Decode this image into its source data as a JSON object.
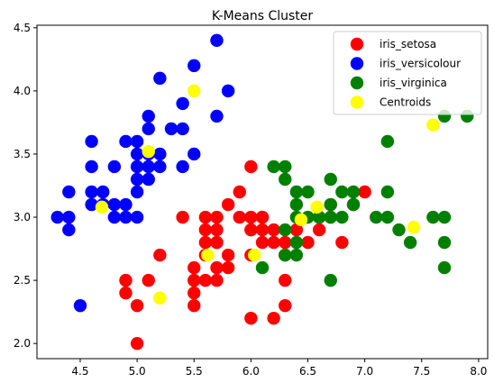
{
  "chart_data": {
    "type": "scatter",
    "title": "K-Means Cluster",
    "xlabel": "",
    "ylabel": "",
    "xlim": [
      4.12,
      8.08
    ],
    "ylim": [
      1.88,
      4.52
    ],
    "x_ticks": [
      "4.5",
      "5.0",
      "5.5",
      "6.0",
      "6.5",
      "7.0",
      "7.5",
      "8.0"
    ],
    "y_ticks": [
      "2.0",
      "2.5",
      "3.0",
      "3.5",
      "4.0",
      "4.5"
    ],
    "grid": false,
    "legend_position": "top-right",
    "series": [
      {
        "name": "iris_setosa",
        "color": "#ff0000",
        "points": [
          [
            5.0,
            2.0
          ],
          [
            6.0,
            2.2
          ],
          [
            6.2,
            2.2
          ],
          [
            5.0,
            2.3
          ],
          [
            5.5,
            2.3
          ],
          [
            6.3,
            2.3
          ],
          [
            4.9,
            2.4
          ],
          [
            5.5,
            2.4
          ],
          [
            4.9,
            2.5
          ],
          [
            5.1,
            2.5
          ],
          [
            5.5,
            2.5
          ],
          [
            5.6,
            2.5
          ],
          [
            5.7,
            2.5
          ],
          [
            6.3,
            2.5
          ],
          [
            5.5,
            2.6
          ],
          [
            5.7,
            2.6
          ],
          [
            5.8,
            2.6
          ],
          [
            5.2,
            2.7
          ],
          [
            5.6,
            2.7
          ],
          [
            5.8,
            2.7
          ],
          [
            6.0,
            2.7
          ],
          [
            6.3,
            2.7
          ],
          [
            5.6,
            2.8
          ],
          [
            5.7,
            2.8
          ],
          [
            6.1,
            2.8
          ],
          [
            6.2,
            2.8
          ],
          [
            6.3,
            2.8
          ],
          [
            6.5,
            2.8
          ],
          [
            6.8,
            2.8
          ],
          [
            5.6,
            2.9
          ],
          [
            5.7,
            2.9
          ],
          [
            6.0,
            2.9
          ],
          [
            6.1,
            2.9
          ],
          [
            6.4,
            2.9
          ],
          [
            5.4,
            3.0
          ],
          [
            5.6,
            3.0
          ],
          [
            5.7,
            3.0
          ],
          [
            5.9,
            3.0
          ],
          [
            6.0,
            3.0
          ],
          [
            6.1,
            3.0
          ],
          [
            6.6,
            3.0
          ],
          [
            5.8,
            3.1
          ],
          [
            6.7,
            3.1
          ],
          [
            6.9,
            3.1
          ],
          [
            6.6,
            3.0
          ],
          [
            6.7,
            3.0
          ],
          [
            5.9,
            3.2
          ],
          [
            7.0,
            3.2
          ],
          [
            6.0,
            3.4
          ],
          [
            6.6,
            2.9
          ],
          [
            6.1,
            3.0
          ],
          [
            6.2,
            2.9
          ],
          [
            5.7,
            2.8
          ],
          [
            6.0,
            2.9
          ]
        ]
      },
      {
        "name": "iris_versicolour",
        "color": "#0000ff",
        "points": [
          [
            4.5,
            2.3
          ],
          [
            4.4,
            2.9
          ],
          [
            4.3,
            3.0
          ],
          [
            4.4,
            3.0
          ],
          [
            4.8,
            3.0
          ],
          [
            4.9,
            3.0
          ],
          [
            5.0,
            3.0
          ],
          [
            4.6,
            3.1
          ],
          [
            4.7,
            3.1
          ],
          [
            4.8,
            3.1
          ],
          [
            4.9,
            3.1
          ],
          [
            4.4,
            3.2
          ],
          [
            4.6,
            3.2
          ],
          [
            4.7,
            3.2
          ],
          [
            5.0,
            3.2
          ],
          [
            5.0,
            3.3
          ],
          [
            5.1,
            3.3
          ],
          [
            4.6,
            3.4
          ],
          [
            4.8,
            3.4
          ],
          [
            5.0,
            3.4
          ],
          [
            5.1,
            3.4
          ],
          [
            5.2,
            3.4
          ],
          [
            5.4,
            3.4
          ],
          [
            5.0,
            3.5
          ],
          [
            5.1,
            3.5
          ],
          [
            5.2,
            3.5
          ],
          [
            5.5,
            3.5
          ],
          [
            4.6,
            3.6
          ],
          [
            4.9,
            3.6
          ],
          [
            5.0,
            3.6
          ],
          [
            5.3,
            3.7
          ],
          [
            5.4,
            3.7
          ],
          [
            5.1,
            3.7
          ],
          [
            5.1,
            3.8
          ],
          [
            5.7,
            3.8
          ],
          [
            5.4,
            3.9
          ],
          [
            5.8,
            4.0
          ],
          [
            5.2,
            4.1
          ],
          [
            5.5,
            4.2
          ],
          [
            5.7,
            4.4
          ]
        ]
      },
      {
        "name": "iris_virginica",
        "color": "#008000",
        "points": [
          [
            6.1,
            2.6
          ],
          [
            7.7,
            2.6
          ],
          [
            6.7,
            2.5
          ],
          [
            6.4,
            2.7
          ],
          [
            6.3,
            2.7
          ],
          [
            7.7,
            2.8
          ],
          [
            6.4,
            2.8
          ],
          [
            7.4,
            2.8
          ],
          [
            6.3,
            2.9
          ],
          [
            7.3,
            2.9
          ],
          [
            7.7,
            3.0
          ],
          [
            7.6,
            3.0
          ],
          [
            7.2,
            3.0
          ],
          [
            7.1,
            3.0
          ],
          [
            6.5,
            3.0
          ],
          [
            6.7,
            3.0
          ],
          [
            6.8,
            3.0
          ],
          [
            6.4,
            3.1
          ],
          [
            6.7,
            3.1
          ],
          [
            6.9,
            3.1
          ],
          [
            6.4,
            3.2
          ],
          [
            6.5,
            3.2
          ],
          [
            6.8,
            3.2
          ],
          [
            6.9,
            3.2
          ],
          [
            7.2,
            3.2
          ],
          [
            6.3,
            3.3
          ],
          [
            6.7,
            3.3
          ],
          [
            6.3,
            3.4
          ],
          [
            6.2,
            3.4
          ],
          [
            7.2,
            3.6
          ],
          [
            7.7,
            3.8
          ],
          [
            7.9,
            3.8
          ],
          [
            6.6,
            3.0
          ],
          [
            6.4,
            3.0
          ]
        ]
      },
      {
        "name": "Centroids",
        "color": "#ffff00",
        "points": [
          [
            5.1,
            3.52
          ],
          [
            4.69,
            3.08
          ],
          [
            5.5,
            4.0
          ],
          [
            5.2,
            2.36
          ],
          [
            5.62,
            2.7
          ],
          [
            6.03,
            2.7
          ],
          [
            6.44,
            2.98
          ],
          [
            6.58,
            3.08
          ],
          [
            7.43,
            2.92
          ],
          [
            7.6,
            3.73
          ]
        ]
      }
    ]
  }
}
